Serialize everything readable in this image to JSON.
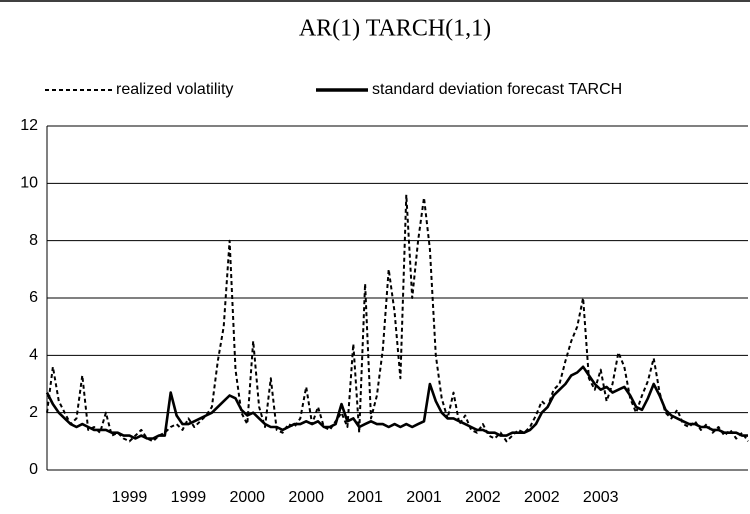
{
  "chart_data": {
    "type": "line",
    "title": "AR(1) TARCH(1,1)",
    "categories": [
      null,
      null,
      null,
      null,
      null,
      null,
      null,
      null,
      null,
      null,
      null,
      null,
      null,
      null,
      "1999",
      null,
      null,
      null,
      null,
      null,
      null,
      null,
      null,
      null,
      "1999",
      null,
      null,
      null,
      null,
      null,
      null,
      null,
      null,
      null,
      "2000",
      null,
      null,
      null,
      null,
      null,
      null,
      null,
      null,
      null,
      "2000",
      null,
      null,
      null,
      null,
      null,
      null,
      null,
      null,
      null,
      "2001",
      null,
      null,
      null,
      null,
      null,
      null,
      null,
      null,
      null,
      "2001",
      null,
      null,
      null,
      null,
      null,
      null,
      null,
      null,
      null,
      "2002",
      null,
      null,
      null,
      null,
      null,
      null,
      null,
      null,
      null,
      "2002",
      null,
      null,
      null,
      null,
      null,
      null,
      null,
      null,
      null,
      "2003",
      null,
      null,
      null,
      null,
      null,
      null,
      null,
      null,
      null,
      null,
      null,
      null,
      null,
      null,
      null,
      null,
      null,
      null,
      null,
      null,
      null,
      null,
      null,
      null,
      null
    ],
    "series": [
      {
        "name": "realized volatility",
        "color": "#000000",
        "dash": true,
        "values": [
          2.0,
          3.6,
          2.4,
          2.0,
          1.6,
          1.8,
          3.3,
          1.4,
          1.5,
          1.3,
          2.0,
          1.2,
          1.3,
          1.1,
          1.0,
          1.2,
          1.4,
          1.1,
          1.0,
          1.2,
          1.3,
          1.5,
          1.6,
          1.4,
          1.8,
          1.5,
          1.7,
          1.9,
          2.2,
          3.8,
          5.0,
          8.0,
          3.5,
          2.0,
          1.6,
          4.5,
          2.2,
          1.5,
          3.2,
          1.4,
          1.3,
          1.6,
          1.5,
          1.8,
          2.9,
          1.6,
          2.2,
          1.5,
          1.4,
          1.7,
          2.0,
          1.5,
          4.4,
          1.3,
          6.5,
          1.8,
          2.6,
          4.2,
          7.0,
          5.5,
          3.2,
          9.6,
          6.0,
          8.0,
          9.5,
          7.7,
          4.0,
          2.5,
          1.8,
          2.7,
          1.6,
          1.9,
          1.4,
          1.3,
          1.6,
          1.2,
          1.1,
          1.3,
          1.0,
          1.2,
          1.4,
          1.3,
          1.5,
          1.9,
          2.4,
          2.2,
          2.8,
          3.0,
          3.8,
          4.5,
          5.0,
          6.0,
          3.2,
          2.8,
          3.5,
          2.4,
          3.0,
          4.1,
          3.6,
          2.5,
          2.0,
          2.6,
          3.1,
          3.9,
          2.7,
          2.0,
          1.8,
          2.1,
          1.6,
          1.5,
          1.7,
          1.4,
          1.6,
          1.3,
          1.5,
          1.2,
          1.4,
          1.1,
          1.3,
          1.0
        ]
      },
      {
        "name": "standard deviation forecast TARCH",
        "color": "#000000",
        "dash": false,
        "values": [
          2.7,
          2.3,
          2.0,
          1.8,
          1.6,
          1.5,
          1.6,
          1.5,
          1.4,
          1.4,
          1.4,
          1.3,
          1.3,
          1.2,
          1.2,
          1.1,
          1.2,
          1.1,
          1.1,
          1.2,
          1.2,
          2.7,
          1.9,
          1.6,
          1.6,
          1.7,
          1.8,
          1.9,
          2.0,
          2.2,
          2.4,
          2.6,
          2.5,
          2.1,
          1.9,
          2.0,
          1.8,
          1.6,
          1.5,
          1.5,
          1.4,
          1.5,
          1.6,
          1.6,
          1.7,
          1.6,
          1.7,
          1.5,
          1.5,
          1.6,
          2.3,
          1.7,
          1.8,
          1.5,
          1.6,
          1.7,
          1.6,
          1.6,
          1.5,
          1.6,
          1.5,
          1.6,
          1.5,
          1.6,
          1.7,
          3.0,
          2.4,
          2.0,
          1.8,
          1.8,
          1.7,
          1.6,
          1.5,
          1.4,
          1.4,
          1.3,
          1.3,
          1.2,
          1.2,
          1.3,
          1.3,
          1.3,
          1.4,
          1.6,
          2.0,
          2.2,
          2.6,
          2.8,
          3.0,
          3.3,
          3.4,
          3.6,
          3.3,
          3.0,
          2.8,
          2.9,
          2.7,
          2.8,
          2.9,
          2.6,
          2.2,
          2.1,
          2.5,
          3.0,
          2.6,
          2.1,
          1.9,
          1.8,
          1.7,
          1.6,
          1.6,
          1.5,
          1.5,
          1.4,
          1.4,
          1.3,
          1.3,
          1.3,
          1.2,
          1.2
        ]
      }
    ],
    "ylim": [
      0,
      12
    ],
    "yticks": [
      0,
      2,
      4,
      6,
      8,
      10,
      12
    ],
    "grid": true,
    "legend": "top"
  }
}
